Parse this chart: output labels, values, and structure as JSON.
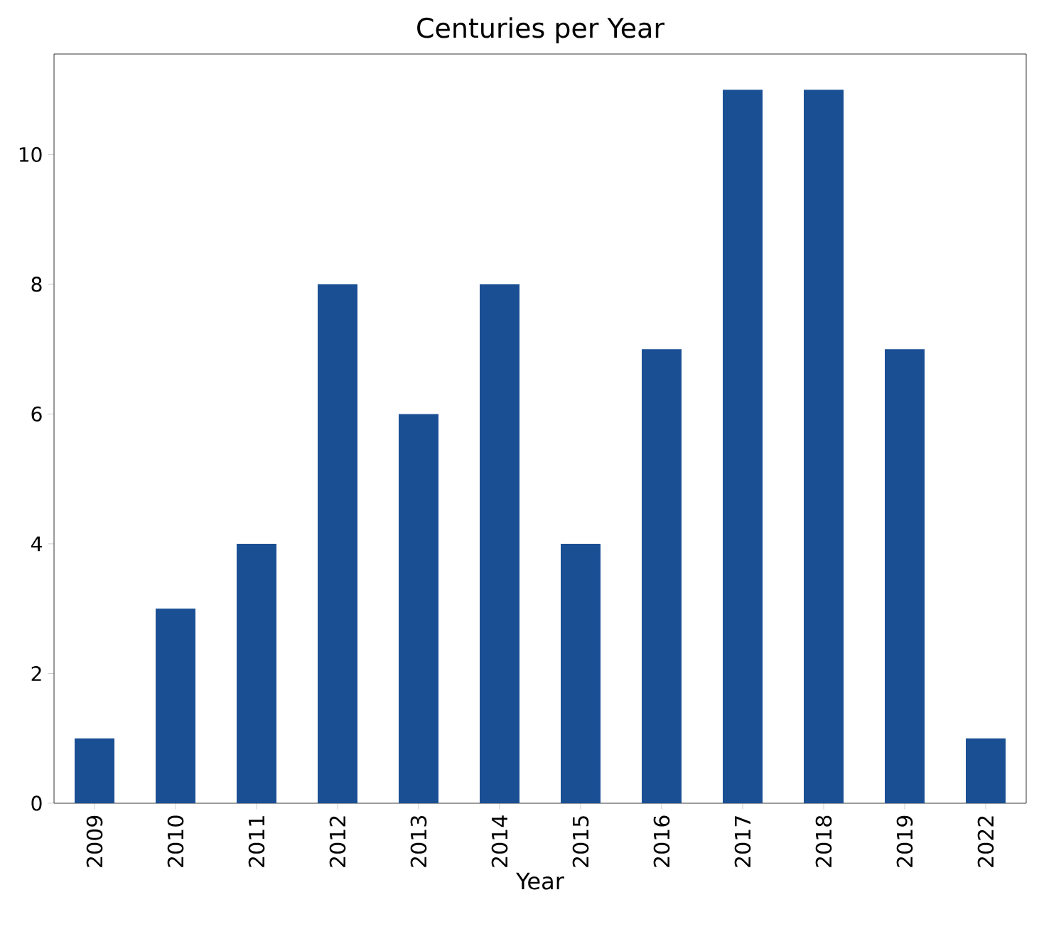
{
  "chart_data": {
    "type": "bar",
    "title": "Centuries per Year",
    "xlabel": "Year",
    "categories": [
      "2009",
      "2010",
      "2011",
      "2012",
      "2013",
      "2014",
      "2015",
      "2016",
      "2017",
      "2018",
      "2019",
      "2022"
    ],
    "values": [
      1,
      3,
      4,
      8,
      6,
      8,
      4,
      7,
      11,
      11,
      7,
      1
    ],
    "color": "#1a4f94",
    "ylim": [
      0,
      11.55
    ],
    "yticks": [
      0,
      2,
      4,
      6,
      8,
      10
    ]
  }
}
